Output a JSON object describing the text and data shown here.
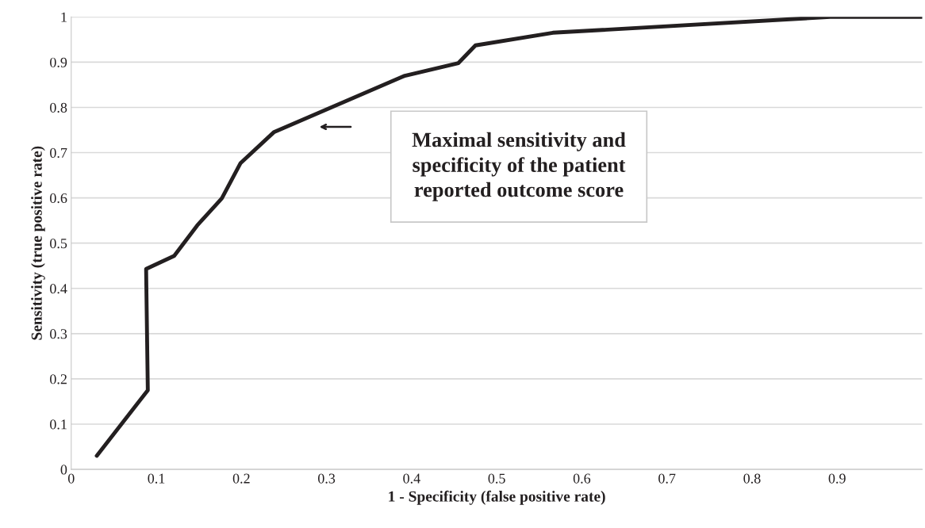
{
  "chart_data": {
    "type": "line",
    "xlabel": "1 - Specificity (false positive rate)",
    "ylabel": "Sensitivity (true positive rate)",
    "x": [
      0.03,
      0.09,
      0.088,
      0.121,
      0.148,
      0.177,
      0.199,
      0.238,
      0.392,
      0.455,
      0.475,
      0.566,
      0.892,
      1.0
    ],
    "series": [
      {
        "color": "#231f20",
        "values": [
          0.03,
          0.175,
          0.443,
          0.472,
          0.539,
          0.599,
          0.677,
          0.745,
          0.87,
          0.898,
          0.937,
          0.965,
          1.0,
          1.0
        ]
      }
    ],
    "xlim": [
      0,
      1
    ],
    "xticks": [
      0,
      0.1,
      0.2,
      0.3,
      0.4,
      0.5,
      0.6,
      0.7,
      0.8,
      0.9
    ],
    "ylim": [
      0,
      1
    ],
    "yticks": [
      0,
      0.1,
      0.2,
      0.3,
      0.4,
      0.5,
      0.6,
      0.7,
      0.8,
      0.9,
      1
    ],
    "grid": "y",
    "legend": false,
    "marker": "none",
    "line_style": "solid",
    "annotations": [
      "Maximal sensitivity and\nspecificity of the patient\nreported outcome score"
    ]
  }
}
